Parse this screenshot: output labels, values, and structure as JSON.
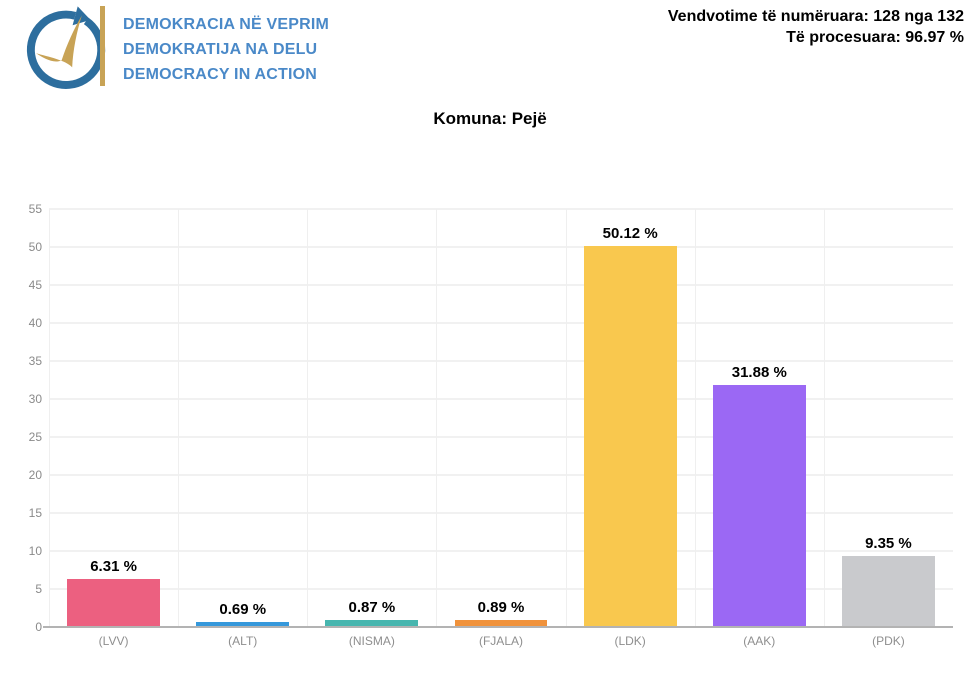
{
  "header": {
    "brand_lines": [
      "DEMOKRACIA NË VEPRIM",
      "DEMOKRATIJA NA DELU",
      "DEMOCRACY IN ACTION"
    ],
    "brand_text_color": "#4a89c8",
    "logo_blue": "#2d6e9e",
    "logo_gold": "#c8a356",
    "stats_line1": "Vendvotime të numëruara: 128 nga 132",
    "stats_line2": "Të procesuara: 96.97 %"
  },
  "title": "Komuna: Pejë",
  "chart_data": {
    "type": "bar",
    "title": "Komuna: Pejë",
    "categories": [
      "(LVV)",
      "(ALT)",
      "(NISMA)",
      "(FJALA)",
      "(LDK)",
      "(AAK)",
      "(PDK)"
    ],
    "values": [
      6.31,
      0.69,
      0.87,
      0.89,
      50.12,
      31.88,
      9.35
    ],
    "value_labels": [
      "6.31 %",
      "0.69 %",
      "0.87 %",
      "0.89 %",
      "50.12 %",
      "31.88 %",
      "9.35 %"
    ],
    "bar_colors": [
      "#ec6080",
      "#3598db",
      "#47b6af",
      "#f0923b",
      "#f9c84e",
      "#9b68f4",
      "#c9cacd"
    ],
    "xlabel": "",
    "ylabel": "",
    "ylim": [
      0,
      55
    ],
    "ytick_step": 5,
    "grid": true,
    "legend": false
  }
}
